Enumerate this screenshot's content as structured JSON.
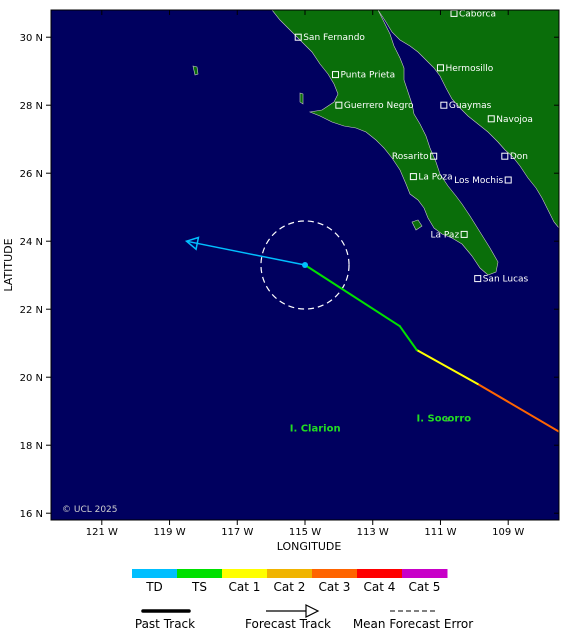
{
  "map": {
    "xlabel": "LONGITUDE",
    "ylabel": "LATITUDE",
    "lon_range": [
      -122.5,
      -107.5
    ],
    "lat_range": [
      15.8,
      30.8
    ],
    "x_ticks": [
      {
        "value": -121,
        "label": "121 W"
      },
      {
        "value": -119,
        "label": "119 W"
      },
      {
        "value": -117,
        "label": "117 W"
      },
      {
        "value": -115,
        "label": "115 W"
      },
      {
        "value": -113,
        "label": "113 W"
      },
      {
        "value": -111,
        "label": "111 W"
      },
      {
        "value": -109,
        "label": "109 W"
      }
    ],
    "y_ticks": [
      {
        "value": 16,
        "label": "16 N"
      },
      {
        "value": 18,
        "label": "18 N"
      },
      {
        "value": 20,
        "label": "20 N"
      },
      {
        "value": 22,
        "label": "22 N"
      },
      {
        "value": 24,
        "label": "24 N"
      },
      {
        "value": 26,
        "label": "26 N"
      },
      {
        "value": 28,
        "label": "28 N"
      },
      {
        "value": 30,
        "label": "30 N"
      }
    ],
    "copyright": "© UCL 2025",
    "colors": {
      "ocean": "#00005f",
      "land": "#0a6e0a",
      "island_label": "#22dd22",
      "city_text": "#ffffff"
    }
  },
  "cities": [
    {
      "name": "Caborca",
      "lon": -110.6,
      "lat": 30.7
    },
    {
      "name": "San Fernando",
      "lon": -115.2,
      "lat": 30.0
    },
    {
      "name": "Hermosillo",
      "lon": -111.0,
      "lat": 29.1
    },
    {
      "name": "Punta Prieta",
      "lon": -114.1,
      "lat": 28.9
    },
    {
      "name": "Guerrero Negro",
      "lon": -114.0,
      "lat": 28.0
    },
    {
      "name": "Guaymas",
      "lon": -110.9,
      "lat": 28.0
    },
    {
      "name": "Navojoa",
      "lon": -109.5,
      "lat": 27.6
    },
    {
      "name": "Rosarito",
      "lon": -111.2,
      "lat": 26.5,
      "label_side": "left"
    },
    {
      "name": "Don",
      "lon": -109.1,
      "lat": 26.5
    },
    {
      "name": "La Poza",
      "lon": -111.8,
      "lat": 25.9
    },
    {
      "name": "Los Mochis",
      "lon": -109.0,
      "lat": 25.8,
      "label_side": "left"
    },
    {
      "name": "La Paz",
      "lon": -110.3,
      "lat": 24.2,
      "label_side": "left"
    },
    {
      "name": "San Lucas",
      "lon": -109.9,
      "lat": 22.9
    }
  ],
  "islands": [
    {
      "name": "I. Clarion",
      "lon": -114.7,
      "lat": 18.4
    },
    {
      "name": "I. Socorro",
      "lon": -110.9,
      "lat": 18.7
    }
  ],
  "storm": {
    "current": {
      "lon": -115.0,
      "lat": 23.3
    },
    "error_radius_deg": 1.3,
    "past_track": [
      {
        "lon": -107.5,
        "lat": 18.4,
        "category": "Cat 3"
      },
      {
        "lon": -109.9,
        "lat": 19.8,
        "category": "Cat 1"
      },
      {
        "lon": -111.7,
        "lat": 20.8,
        "category": "TS"
      },
      {
        "lon": -112.2,
        "lat": 21.5,
        "category": "TS"
      },
      {
        "lon": -115.0,
        "lat": 23.3,
        "category": "TS"
      }
    ],
    "forecast_track": [
      {
        "lon": -115.0,
        "lat": 23.3
      },
      {
        "lon": -118.5,
        "lat": 24.0
      }
    ],
    "forecast_category": "TD"
  },
  "legend": {
    "categories": [
      {
        "label": "TD",
        "color": "#00bfff"
      },
      {
        "label": "TS",
        "color": "#00e000"
      },
      {
        "label": "Cat 1",
        "color": "#ffff00"
      },
      {
        "label": "Cat 2",
        "color": "#f0b400"
      },
      {
        "label": "Cat 3",
        "color": "#ff6400"
      },
      {
        "label": "Cat 4",
        "color": "#ff0000"
      },
      {
        "label": "Cat 5",
        "color": "#c800c8"
      }
    ],
    "past_track": "Past Track",
    "forecast_track": "Forecast Track",
    "mean_error": "Mean Forecast Error"
  }
}
